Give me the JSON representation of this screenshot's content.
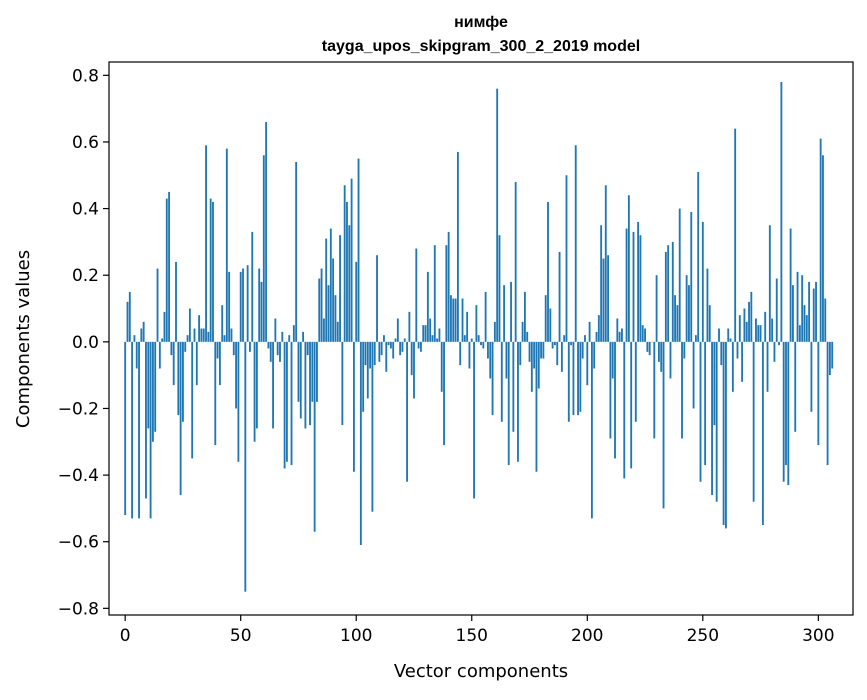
{
  "chart_data": {
    "type": "bar",
    "title_line1": "нимфе",
    "title_line2": "tayga_upos_skipgram_300_2_2019 model",
    "xlabel": "Vector components",
    "ylabel": "Components values",
    "xlim": [
      -7,
      315
    ],
    "ylim": [
      -0.82,
      0.84
    ],
    "xticks": [
      0,
      50,
      100,
      150,
      200,
      250,
      300
    ],
    "xtick_labels": [
      "0",
      "50",
      "100",
      "150",
      "200",
      "250",
      "300"
    ],
    "yticks": [
      -0.8,
      -0.6,
      -0.4,
      -0.2,
      0.0,
      0.2,
      0.4,
      0.6,
      0.8
    ],
    "ytick_labels": [
      "−0.8",
      "−0.6",
      "−0.4",
      "−0.2",
      "0.0",
      "0.2",
      "0.4",
      "0.6",
      "0.8"
    ],
    "bar_color": "#1f77b4",
    "grid": false,
    "values": [
      -0.52,
      0.12,
      0.15,
      -0.53,
      0.02,
      -0.08,
      -0.53,
      0.04,
      0.06,
      -0.47,
      -0.26,
      -0.53,
      -0.3,
      -0.27,
      0.22,
      -0.08,
      0.01,
      0.09,
      0.43,
      0.45,
      -0.04,
      -0.13,
      0.24,
      -0.22,
      -0.46,
      -0.24,
      -0.03,
      0.02,
      0.1,
      -0.35,
      0.04,
      -0.13,
      0.08,
      0.04,
      0.04,
      0.59,
      0.03,
      0.43,
      0.42,
      -0.31,
      -0.05,
      -0.13,
      0.11,
      0.02,
      0.58,
      0.21,
      0.04,
      -0.04,
      -0.2,
      -0.36,
      0.21,
      0.22,
      -0.75,
      0.23,
      -0.03,
      0.33,
      -0.3,
      -0.26,
      0.22,
      0.18,
      0.56,
      0.66,
      -0.02,
      -0.06,
      -0.26,
      0.07,
      -0.04,
      -0.06,
      0.03,
      -0.38,
      -0.36,
      0.02,
      -0.37,
      0.05,
      0.54,
      -0.18,
      -0.23,
      0.03,
      -0.26,
      -0.04,
      -0.25,
      -0.18,
      -0.57,
      -0.18,
      0.19,
      0.22,
      0.07,
      0.31,
      0.17,
      0.34,
      0.25,
      0.14,
      0.06,
      0.32,
      -0.25,
      0.47,
      0.42,
      0.35,
      0.49,
      -0.39,
      0.24,
      0.55,
      -0.61,
      -0.21,
      -0.07,
      -0.17,
      -0.08,
      -0.51,
      -0.07,
      0.26,
      -0.06,
      -0.04,
      0.02,
      -0.09,
      -0.01,
      -0.02,
      -0.05,
      0.01,
      0.07,
      -0.04,
      -0.03,
      0.01,
      -0.42,
      0.09,
      -0.1,
      -0.17,
      0.28,
      -0.02,
      -0.03,
      0.05,
      0.05,
      0.21,
      0.07,
      0.02,
      0.29,
      0.01,
      0.04,
      -0.15,
      -0.31,
      0.29,
      0.33,
      0.14,
      0.13,
      0.13,
      0.57,
      -0.07,
      0.13,
      0.02,
      0.09,
      -0.08,
      0.01,
      -0.47,
      0.11,
      0.02,
      -0.01,
      -0.02,
      0.15,
      -0.05,
      -0.11,
      -0.22,
      0.06,
      0.76,
      0.32,
      -0.24,
      0.17,
      -0.11,
      -0.37,
      0.18,
      -0.27,
      0.48,
      -0.36,
      -0.07,
      0.06,
      0.15,
      0.03,
      -0.06,
      -0.15,
      -0.08,
      -0.39,
      -0.14,
      -0.05,
      -0.05,
      0.14,
      0.42,
      0.1,
      -0.02,
      -0.01,
      -0.07,
      0.27,
      -0.09,
      0.02,
      0.5,
      -0.24,
      -0.01,
      -0.22,
      0.59,
      -0.22,
      -0.21,
      -0.05,
      0.02,
      -0.13,
      0.06,
      -0.53,
      -0.08,
      0.03,
      0.08,
      0.35,
      0.25,
      0.47,
      0.26,
      -0.29,
      -0.11,
      -0.35,
      0.07,
      0.03,
      0.04,
      -0.41,
      0.34,
      0.44,
      -0.38,
      0.33,
      -0.24,
      0.36,
      0.32,
      0.05,
      0.04,
      -0.03,
      -0.04,
      0.0,
      -0.29,
      0.2,
      -0.06,
      -0.09,
      -0.5,
      0.27,
      0.29,
      -0.11,
      0.3,
      0.14,
      0.11,
      0.4,
      -0.29,
      -0.05,
      0.2,
      0.17,
      0.39,
      -0.2,
      0.02,
      0.51,
      -0.42,
      0.36,
      -0.37,
      0.22,
      0.11,
      -0.46,
      -0.25,
      -0.48,
      0.04,
      -0.07,
      -0.55,
      -0.56,
      0.04,
      0.01,
      -0.15,
      0.64,
      -0.05,
      0.08,
      -0.12,
      0.1,
      0.06,
      0.12,
      0.15,
      -0.48,
      0.07,
      0.05,
      0.05,
      -0.55,
      0.09,
      -0.15,
      0.35,
      0.07,
      -0.06,
      0.19,
      -0.01,
      0.78,
      -0.42,
      -0.37,
      -0.43,
      0.34,
      0.17,
      -0.27,
      0.21,
      0.05,
      0.2,
      0.11,
      0.08,
      0.18,
      -0.21,
      0.16,
      0.18,
      -0.31,
      0.61,
      0.56,
      0.13,
      -0.37,
      -0.1,
      -0.08
    ]
  }
}
